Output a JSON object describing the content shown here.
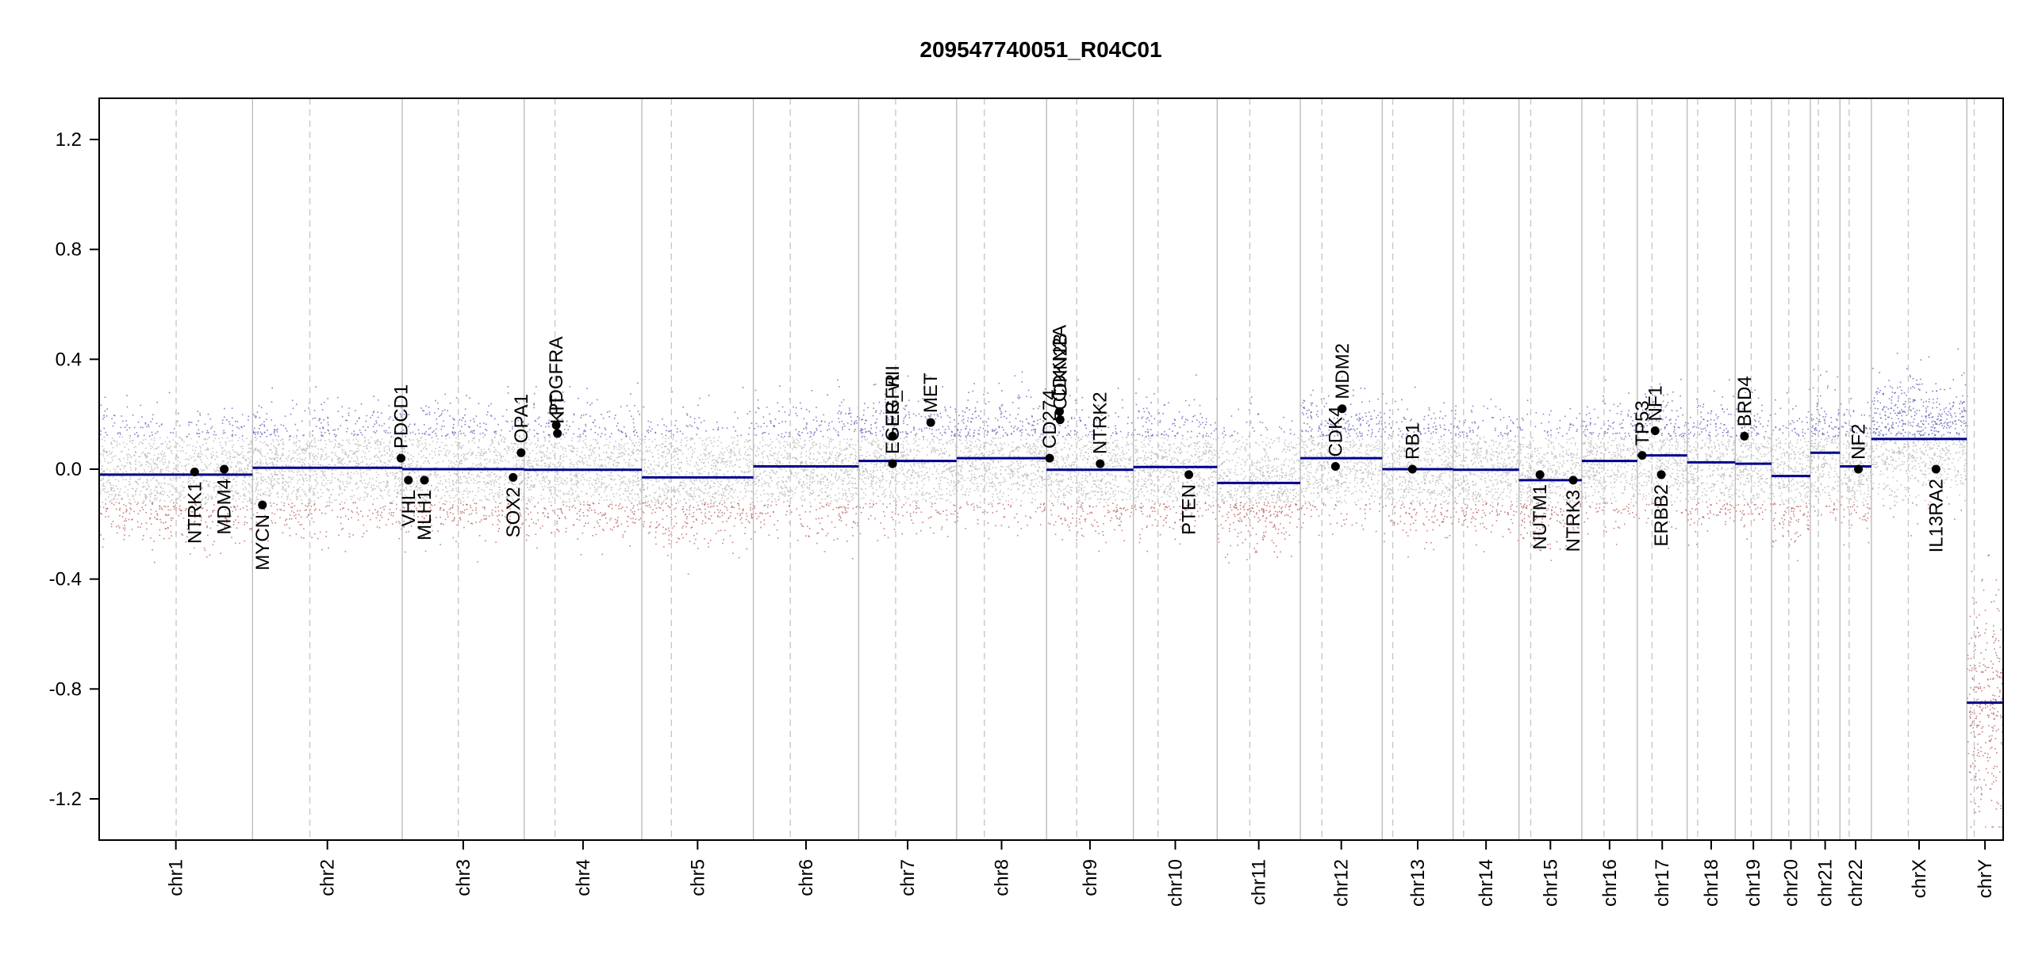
{
  "chart_data": {
    "type": "scatter",
    "title": "209547740051_R04C01",
    "xlabel": "",
    "ylabel": "",
    "ylim": [
      -1.35,
      1.35
    ],
    "y_ticks": [
      "1.2",
      "0.8",
      "0.4",
      "0.0",
      "-0.4",
      "-0.8",
      "-1.2"
    ],
    "y_tick_values": [
      1.2,
      0.8,
      0.4,
      0.0,
      -0.4,
      -0.8,
      -1.2
    ],
    "grid": false,
    "legend": "none",
    "colors": {
      "segment": "#00008b",
      "gain_probe": "#5a5ab4",
      "neutral_probe": "#b4b4b4",
      "loss_probe": "#b45a5a",
      "gene_point": "#000000",
      "chrom_border": "#bdbdbd",
      "centromere": "#c8c8c8"
    },
    "chromosomes": [
      {
        "name": "chr1",
        "start": 0,
        "length": 249,
        "centromere": 125
      },
      {
        "name": "chr2",
        "start": 249,
        "length": 243,
        "centromere": 93
      },
      {
        "name": "chr3",
        "start": 492,
        "length": 198,
        "centromere": 91
      },
      {
        "name": "chr4",
        "start": 690,
        "length": 191,
        "centromere": 50
      },
      {
        "name": "chr5",
        "start": 881,
        "length": 181,
        "centromere": 48
      },
      {
        "name": "chr6",
        "start": 1062,
        "length": 171,
        "centromere": 60
      },
      {
        "name": "chr7",
        "start": 1233,
        "length": 159,
        "centromere": 60
      },
      {
        "name": "chr8",
        "start": 1392,
        "length": 146,
        "centromere": 45
      },
      {
        "name": "chr9",
        "start": 1538,
        "length": 141,
        "centromere": 49
      },
      {
        "name": "chr10",
        "start": 1679,
        "length": 136,
        "centromere": 40
      },
      {
        "name": "chr11",
        "start": 1815,
        "length": 135,
        "centromere": 53
      },
      {
        "name": "chr12",
        "start": 1950,
        "length": 133,
        "centromere": 35
      },
      {
        "name": "chr13",
        "start": 2083,
        "length": 115,
        "centromere": 17
      },
      {
        "name": "chr14",
        "start": 2198,
        "length": 107,
        "centromere": 17
      },
      {
        "name": "chr15",
        "start": 2305,
        "length": 102,
        "centromere": 19
      },
      {
        "name": "chr16",
        "start": 2407,
        "length": 90,
        "centromere": 36
      },
      {
        "name": "chr17",
        "start": 2497,
        "length": 81,
        "centromere": 24
      },
      {
        "name": "chr18",
        "start": 2578,
        "length": 78,
        "centromere": 17
      },
      {
        "name": "chr19",
        "start": 2656,
        "length": 59,
        "centromere": 26
      },
      {
        "name": "chr20",
        "start": 2715,
        "length": 63,
        "centromere": 28
      },
      {
        "name": "chr21",
        "start": 2778,
        "length": 48,
        "centromere": 13
      },
      {
        "name": "chr22",
        "start": 2826,
        "length": 51,
        "centromere": 15
      },
      {
        "name": "chrX",
        "start": 2877,
        "length": 155,
        "centromere": 60
      },
      {
        "name": "chrY",
        "start": 3032,
        "length": 59,
        "centromere": 12
      }
    ],
    "segments": [
      {
        "chrom": "chr1",
        "from": 0,
        "to": 249,
        "value": -0.02
      },
      {
        "chrom": "chr2",
        "from": 249,
        "to": 492,
        "value": 0.005
      },
      {
        "chrom": "chr3",
        "from": 492,
        "to": 690,
        "value": 0.0
      },
      {
        "chrom": "chr4",
        "from": 690,
        "to": 881,
        "value": -0.002
      },
      {
        "chrom": "chr5",
        "from": 881,
        "to": 1062,
        "value": -0.03
      },
      {
        "chrom": "chr6",
        "from": 1062,
        "to": 1233,
        "value": 0.01
      },
      {
        "chrom": "chr7",
        "from": 1233,
        "to": 1392,
        "value": 0.03
      },
      {
        "chrom": "chr8",
        "from": 1392,
        "to": 1538,
        "value": 0.04
      },
      {
        "chrom": "chr9",
        "from": 1538,
        "to": 1679,
        "value": -0.002
      },
      {
        "chrom": "chr10",
        "from": 1679,
        "to": 1815,
        "value": 0.008
      },
      {
        "chrom": "chr11",
        "from": 1815,
        "to": 1950,
        "value": -0.05
      },
      {
        "chrom": "chr12",
        "from": 1950,
        "to": 2083,
        "value": 0.04
      },
      {
        "chrom": "chr13",
        "from": 2083,
        "to": 2198,
        "value": 0.0
      },
      {
        "chrom": "chr14",
        "from": 2198,
        "to": 2305,
        "value": -0.002
      },
      {
        "chrom": "chr15",
        "from": 2305,
        "to": 2407,
        "value": -0.04
      },
      {
        "chrom": "chr16",
        "from": 2407,
        "to": 2497,
        "value": 0.03
      },
      {
        "chrom": "chr17",
        "from": 2497,
        "to": 2578,
        "value": 0.05
      },
      {
        "chrom": "chr18",
        "from": 2578,
        "to": 2656,
        "value": 0.025
      },
      {
        "chrom": "chr19",
        "from": 2656,
        "to": 2715,
        "value": 0.02
      },
      {
        "chrom": "chr20",
        "from": 2715,
        "to": 2778,
        "value": -0.025
      },
      {
        "chrom": "chr21",
        "from": 2778,
        "to": 2826,
        "value": 0.06
      },
      {
        "chrom": "chr22",
        "from": 2826,
        "to": 2877,
        "value": 0.01
      },
      {
        "chrom": "chrX",
        "from": 2877,
        "to": 3032,
        "value": 0.11
      },
      {
        "chrom": "chrY",
        "from": 3032,
        "to": 3091,
        "value": -0.85
      }
    ],
    "genes": [
      {
        "name": "NTRK1",
        "x": 155,
        "y": -0.01,
        "label_side": "below"
      },
      {
        "name": "MDM4",
        "x": 203,
        "y": 0.0,
        "label_side": "below"
      },
      {
        "name": "MYCN",
        "x": 265,
        "y": -0.13,
        "label_side": "below"
      },
      {
        "name": "PDCD1",
        "x": 490,
        "y": 0.04,
        "label_side": "above"
      },
      {
        "name": "VHL",
        "x": 502,
        "y": -0.04,
        "label_side": "below"
      },
      {
        "name": "MLH1",
        "x": 528,
        "y": -0.04,
        "label_side": "below"
      },
      {
        "name": "SOX2",
        "x": 672,
        "y": -0.03,
        "label_side": "below"
      },
      {
        "name": "OPA1",
        "x": 685,
        "y": 0.06,
        "label_side": "above"
      },
      {
        "name": "PDGFRA",
        "x": 742,
        "y": 0.16,
        "label_side": "above"
      },
      {
        "name": "KIT",
        "x": 744,
        "y": 0.13,
        "label_side": "above"
      },
      {
        "name": "EGFR",
        "x": 1288,
        "y": 0.12,
        "label_side": "above"
      },
      {
        "name": "EGFR_vIII",
        "x": 1288,
        "y": 0.02,
        "label_side": "above"
      },
      {
        "name": "MET",
        "x": 1350,
        "y": 0.17,
        "label_side": "above"
      },
      {
        "name": "CD274",
        "x": 1543,
        "y": 0.04,
        "label_side": "above"
      },
      {
        "name": "CDKN2A",
        "x": 1559,
        "y": 0.21,
        "label_side": "above"
      },
      {
        "name": "CDKN2B",
        "x": 1560,
        "y": 0.18,
        "label_side": "above"
      },
      {
        "name": "NTRK2",
        "x": 1625,
        "y": 0.02,
        "label_side": "above"
      },
      {
        "name": "PTEN",
        "x": 1769,
        "y": -0.02,
        "label_side": "below"
      },
      {
        "name": "CDK4",
        "x": 2007,
        "y": 0.01,
        "label_side": "above"
      },
      {
        "name": "MDM2",
        "x": 2018,
        "y": 0.22,
        "label_side": "above"
      },
      {
        "name": "RB1",
        "x": 2132,
        "y": 0.0,
        "label_side": "above"
      },
      {
        "name": "NUTM1",
        "x": 2339,
        "y": -0.02,
        "label_side": "below"
      },
      {
        "name": "NTRK3",
        "x": 2393,
        "y": -0.04,
        "label_side": "below"
      },
      {
        "name": "TP53",
        "x": 2505,
        "y": 0.05,
        "label_side": "above"
      },
      {
        "name": "NF1",
        "x": 2526,
        "y": 0.14,
        "label_side": "above"
      },
      {
        "name": "ERBB2",
        "x": 2536,
        "y": -0.02,
        "label_side": "below"
      },
      {
        "name": "BRD4",
        "x": 2671,
        "y": 0.12,
        "label_side": "above"
      },
      {
        "name": "NF2",
        "x": 2856,
        "y": 0.0,
        "label_side": "above"
      },
      {
        "name": "IL13RA2",
        "x": 2982,
        "y": 0.0,
        "label_side": "below"
      }
    ]
  }
}
